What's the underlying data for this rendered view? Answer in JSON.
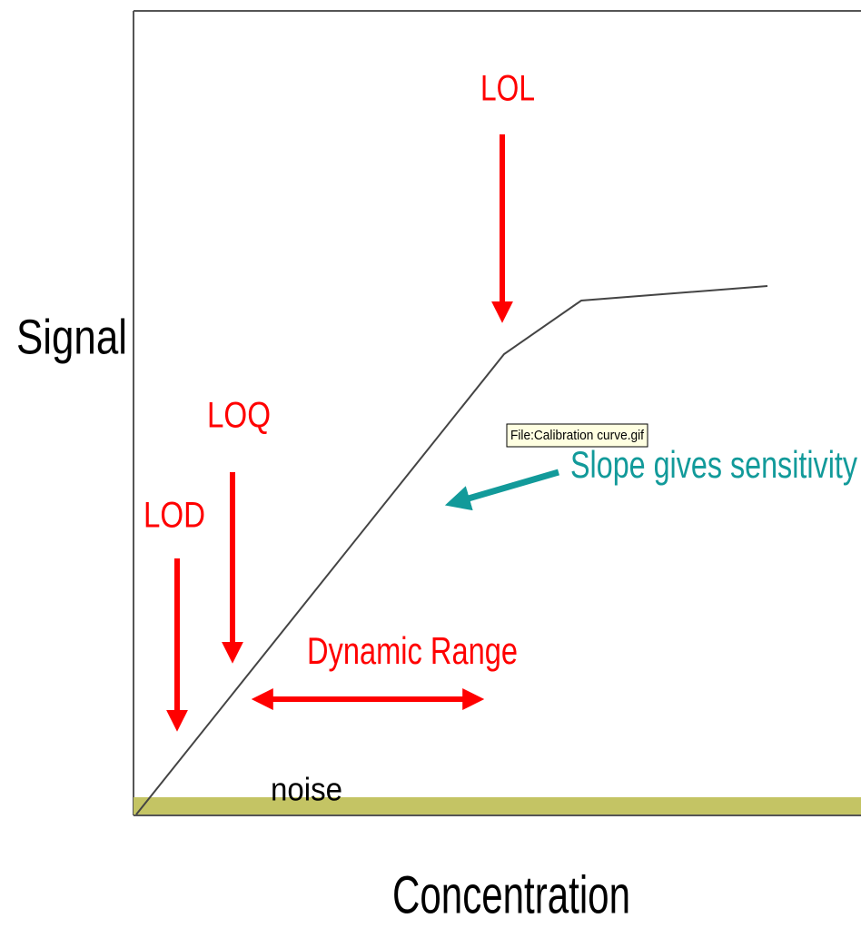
{
  "labels": {
    "y_axis": "Signal",
    "x_axis": "Concentration",
    "lol": "LOL",
    "loq": "LOQ",
    "lod": "LOD",
    "dynamic_range": "Dynamic Range",
    "noise": "noise",
    "slope": "Slope gives sensitivity"
  },
  "tooltip": "File:Calibration curve.gif"
}
